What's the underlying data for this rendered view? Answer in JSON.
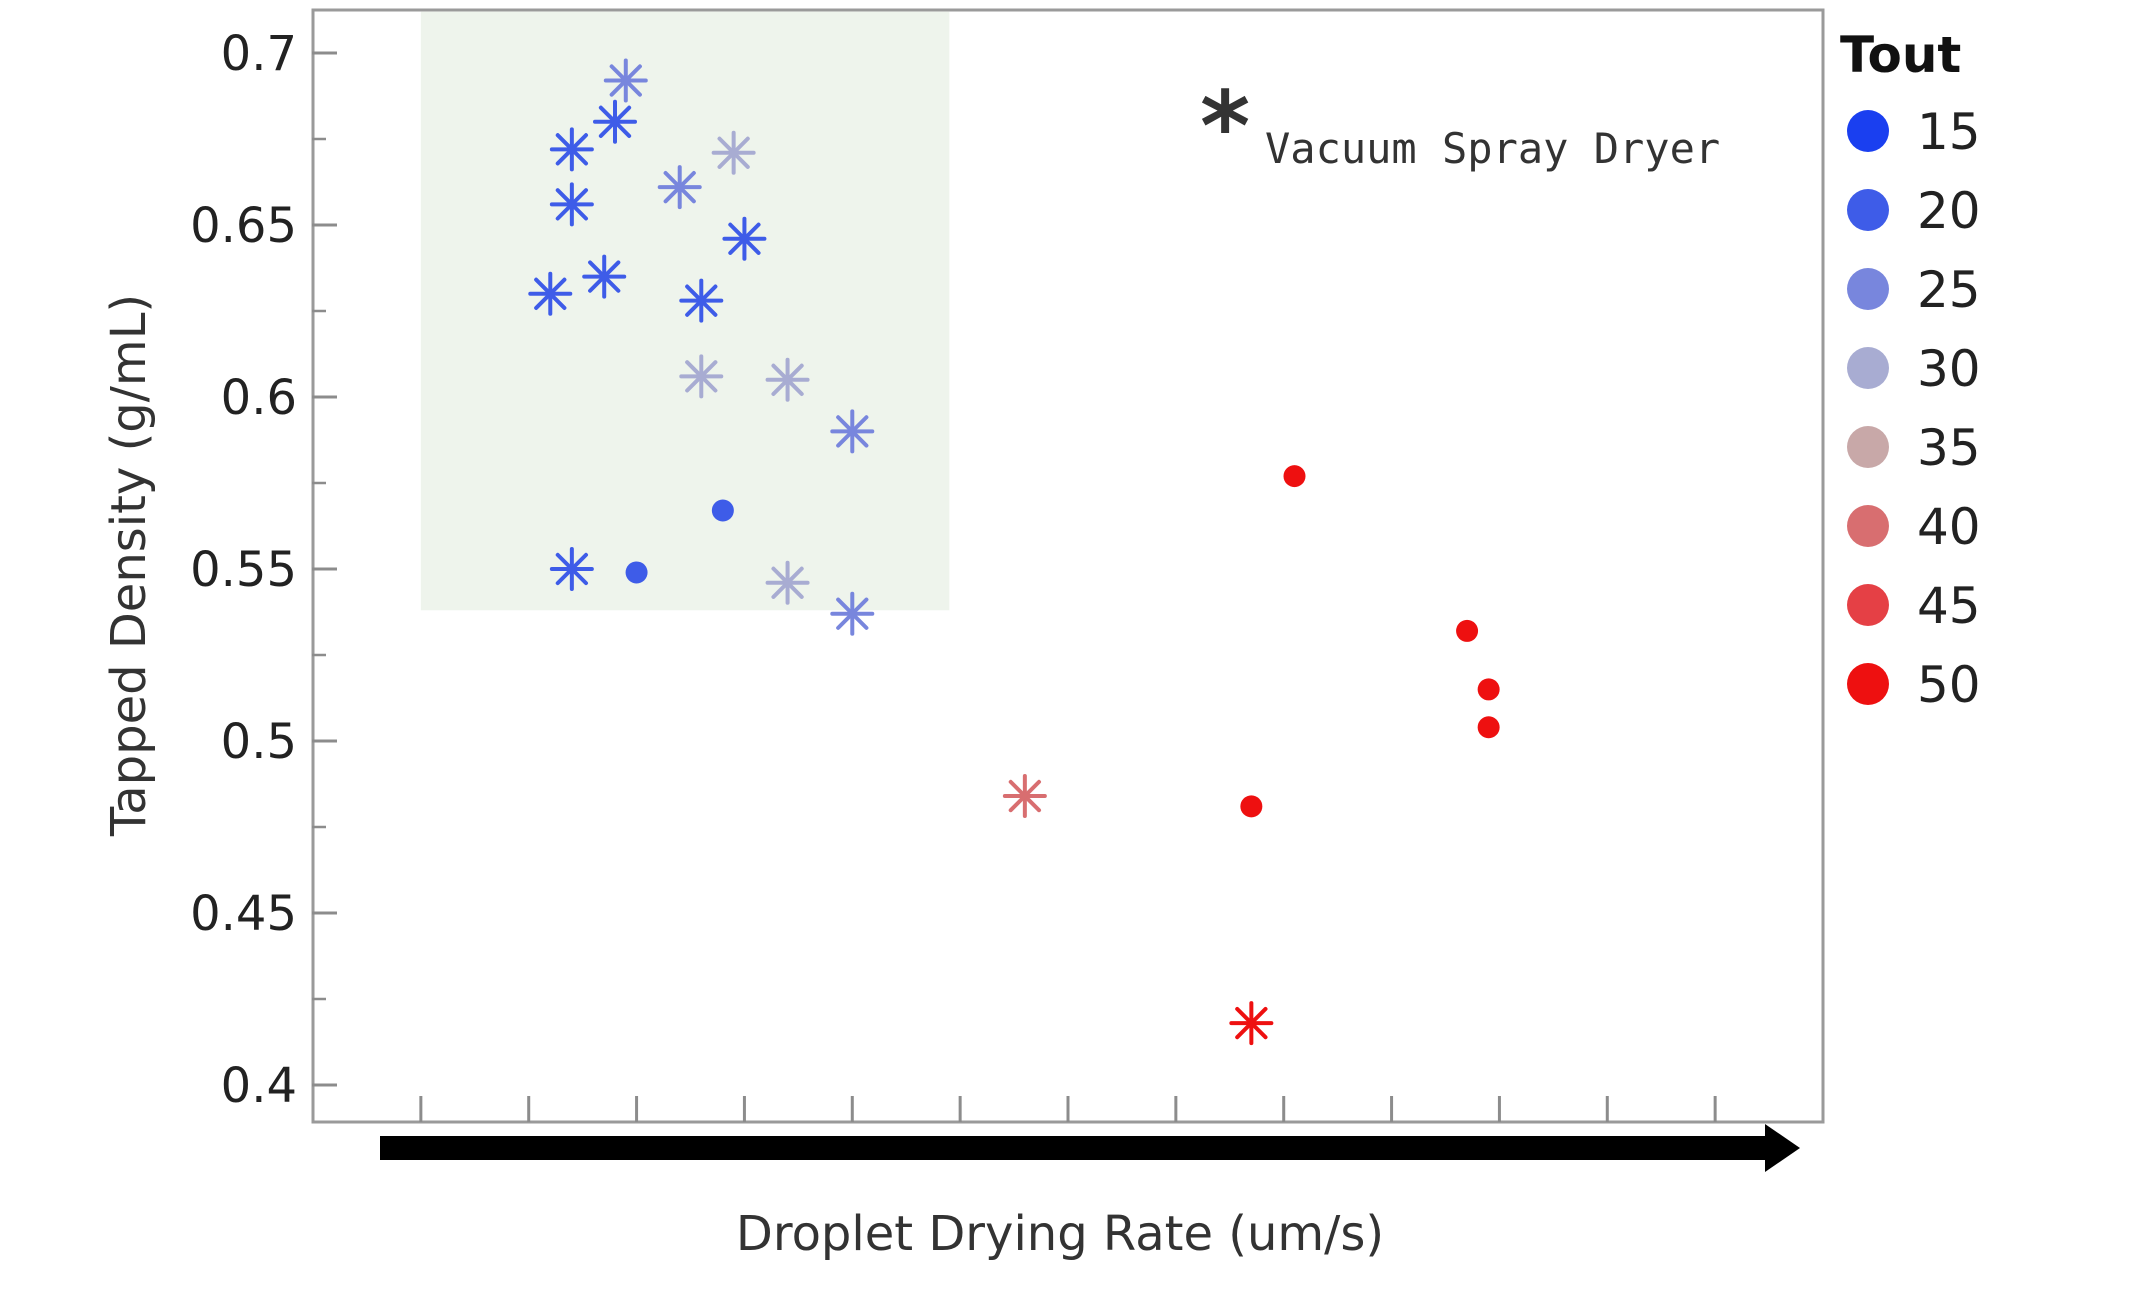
{
  "chart_data": {
    "type": "scatter",
    "title": "",
    "xlabel": "Droplet Drying Rate (um/s)",
    "ylabel": "Tapped Density (g/mL)",
    "ylim": [
      0.4,
      0.7
    ],
    "y_ticks": [
      "0.4",
      "0.45",
      "0.5",
      "0.55",
      "0.6",
      "0.65",
      "0.7"
    ],
    "x_tick_labels_shown": false,
    "x_increasing_arrow": true,
    "grid": false,
    "highlight_region": {
      "color": "#eef4ec",
      "x_range": [
        0.0,
        4.9
      ],
      "y_range": [
        0.538,
        0.712
      ]
    },
    "legend": {
      "title": "Tout",
      "placement": "right",
      "items": [
        {
          "label": "15",
          "color": "#1a3ff0"
        },
        {
          "label": "20",
          "color": "#3e5ce8"
        },
        {
          "label": "25",
          "color": "#7886dd"
        },
        {
          "label": "30",
          "color": "#a8acd2"
        },
        {
          "label": "35",
          "color": "#c8a8a8"
        },
        {
          "label": "40",
          "color": "#d86e70"
        },
        {
          "label": "45",
          "color": "#e54045"
        },
        {
          "label": "50",
          "color": "#ee1010"
        }
      ]
    },
    "marker_note": {
      "symbol": "*",
      "text": "Vacuum Spray Dryer"
    },
    "series": [
      {
        "marker": "star",
        "points": [
          {
            "x": 1.2,
            "y": 0.63,
            "tout": 20
          },
          {
            "x": 1.4,
            "y": 0.672,
            "tout": 20
          },
          {
            "x": 1.4,
            "y": 0.656,
            "tout": 20
          },
          {
            "x": 1.4,
            "y": 0.55,
            "tout": 20
          },
          {
            "x": 1.7,
            "y": 0.635,
            "tout": 20
          },
          {
            "x": 1.8,
            "y": 0.68,
            "tout": 20
          },
          {
            "x": 1.9,
            "y": 0.692,
            "tout": 25
          },
          {
            "x": 2.4,
            "y": 0.661,
            "tout": 25
          },
          {
            "x": 2.6,
            "y": 0.628,
            "tout": 20
          },
          {
            "x": 2.6,
            "y": 0.606,
            "tout": 30
          },
          {
            "x": 2.9,
            "y": 0.671,
            "tout": 30
          },
          {
            "x": 3.0,
            "y": 0.646,
            "tout": 20
          },
          {
            "x": 3.4,
            "y": 0.605,
            "tout": 30
          },
          {
            "x": 3.4,
            "y": 0.546,
            "tout": 30
          },
          {
            "x": 4.0,
            "y": 0.59,
            "tout": 25
          },
          {
            "x": 4.0,
            "y": 0.537,
            "tout": 25
          },
          {
            "x": 5.6,
            "y": 0.484,
            "tout": 40
          },
          {
            "x": 7.7,
            "y": 0.418,
            "tout": 50
          }
        ]
      },
      {
        "marker": "circle",
        "points": [
          {
            "x": 2.0,
            "y": 0.549,
            "tout": 20
          },
          {
            "x": 2.8,
            "y": 0.567,
            "tout": 20
          },
          {
            "x": 8.1,
            "y": 0.577,
            "tout": 50
          },
          {
            "x": 7.7,
            "y": 0.481,
            "tout": 50
          },
          {
            "x": 9.7,
            "y": 0.532,
            "tout": 50
          },
          {
            "x": 9.9,
            "y": 0.515,
            "tout": 50
          },
          {
            "x": 9.9,
            "y": 0.504,
            "tout": 50
          }
        ]
      }
    ]
  }
}
